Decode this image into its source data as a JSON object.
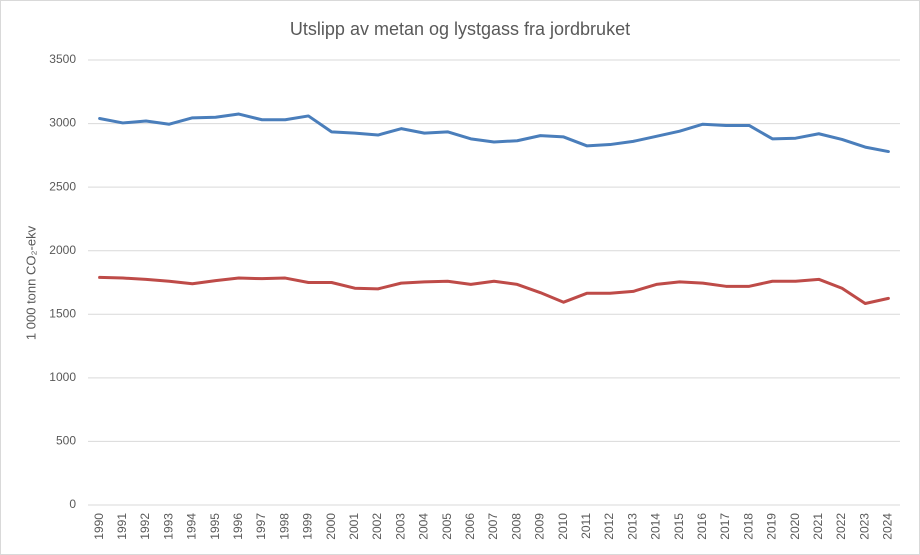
{
  "chart_data": {
    "type": "line",
    "title": "Utslipp av metan og lystgass fra jordbruket",
    "y_label": "1 000 tonn CO₂-ekv",
    "categories": [
      "1990",
      "1991",
      "1992",
      "1993",
      "1994",
      "1995",
      "1996",
      "1997",
      "1998",
      "1999",
      "2000",
      "2001",
      "2002",
      "2003",
      "2004",
      "2005",
      "2006",
      "2007",
      "2008",
      "2009",
      "2010",
      "2011",
      "2012",
      "2013",
      "2014",
      "2015",
      "2016",
      "2017",
      "2018",
      "2019",
      "2020",
      "2021",
      "2022",
      "2023",
      "2024"
    ],
    "series": [
      {
        "color": "#4a7ebb",
        "values": [
          3040,
          3005,
          3020,
          2995,
          3045,
          3050,
          3075,
          3030,
          3030,
          3060,
          2935,
          2925,
          2910,
          2960,
          2925,
          2935,
          2880,
          2855,
          2865,
          2905,
          2895,
          2825,
          2835,
          2860,
          2900,
          2940,
          2995,
          2985,
          2985,
          2880,
          2885,
          2920,
          2875,
          2815,
          2780
        ]
      },
      {
        "color": "#be4b48",
        "values": [
          1790,
          1785,
          1775,
          1760,
          1740,
          1765,
          1785,
          1780,
          1785,
          1750,
          1750,
          1705,
          1700,
          1745,
          1755,
          1760,
          1735,
          1760,
          1735,
          1670,
          1595,
          1665,
          1665,
          1680,
          1735,
          1755,
          1745,
          1720,
          1720,
          1760,
          1760,
          1775,
          1705,
          1585,
          1625
        ]
      }
    ],
    "ylim": [
      0,
      3500
    ],
    "yticks": [
      0,
      500,
      1000,
      1500,
      2000,
      2500,
      3000,
      3500
    ],
    "grid": true
  }
}
